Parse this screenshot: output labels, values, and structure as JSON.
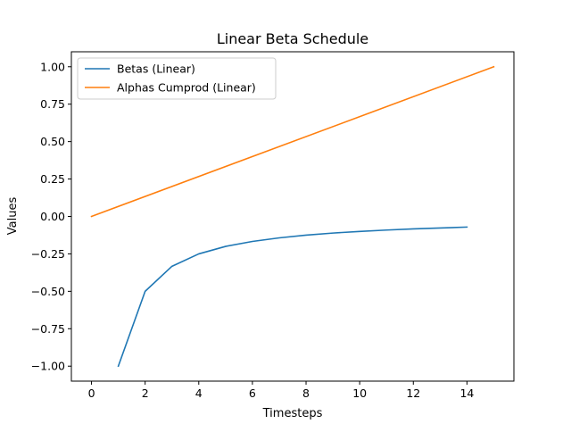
{
  "chart_data": {
    "type": "line",
    "title": "Linear Beta Schedule",
    "xlabel": "Timesteps",
    "ylabel": "Values",
    "xlim": [
      -0.75,
      15.75
    ],
    "ylim": [
      -1.1,
      1.1
    ],
    "xticks": [
      0,
      2,
      4,
      6,
      8,
      10,
      12,
      14
    ],
    "xtick_labels": [
      "0",
      "2",
      "4",
      "6",
      "8",
      "10",
      "12",
      "14"
    ],
    "yticks": [
      -1.0,
      -0.75,
      -0.5,
      -0.25,
      0.0,
      0.25,
      0.5,
      0.75,
      1.0
    ],
    "ytick_labels": [
      "−1.00",
      "−0.75",
      "−0.50",
      "−0.25",
      "0.00",
      "0.25",
      "0.50",
      "0.75",
      "1.00"
    ],
    "grid": false,
    "legend_position": "upper-left",
    "series": [
      {
        "name": "Betas (Linear)",
        "color": "#1f77b4",
        "x": [
          1,
          2,
          3,
          4,
          5,
          6,
          7,
          8,
          9,
          10,
          11,
          12,
          13,
          14
        ],
        "y": [
          -1.0,
          -0.5,
          -0.333,
          -0.25,
          -0.2,
          -0.167,
          -0.143,
          -0.125,
          -0.111,
          -0.1,
          -0.091,
          -0.083,
          -0.077,
          -0.071
        ]
      },
      {
        "name": "Alphas Cumprod (Linear)",
        "color": "#ff7f0e",
        "x": [
          0,
          15
        ],
        "y": [
          0.0,
          1.0
        ]
      }
    ]
  }
}
